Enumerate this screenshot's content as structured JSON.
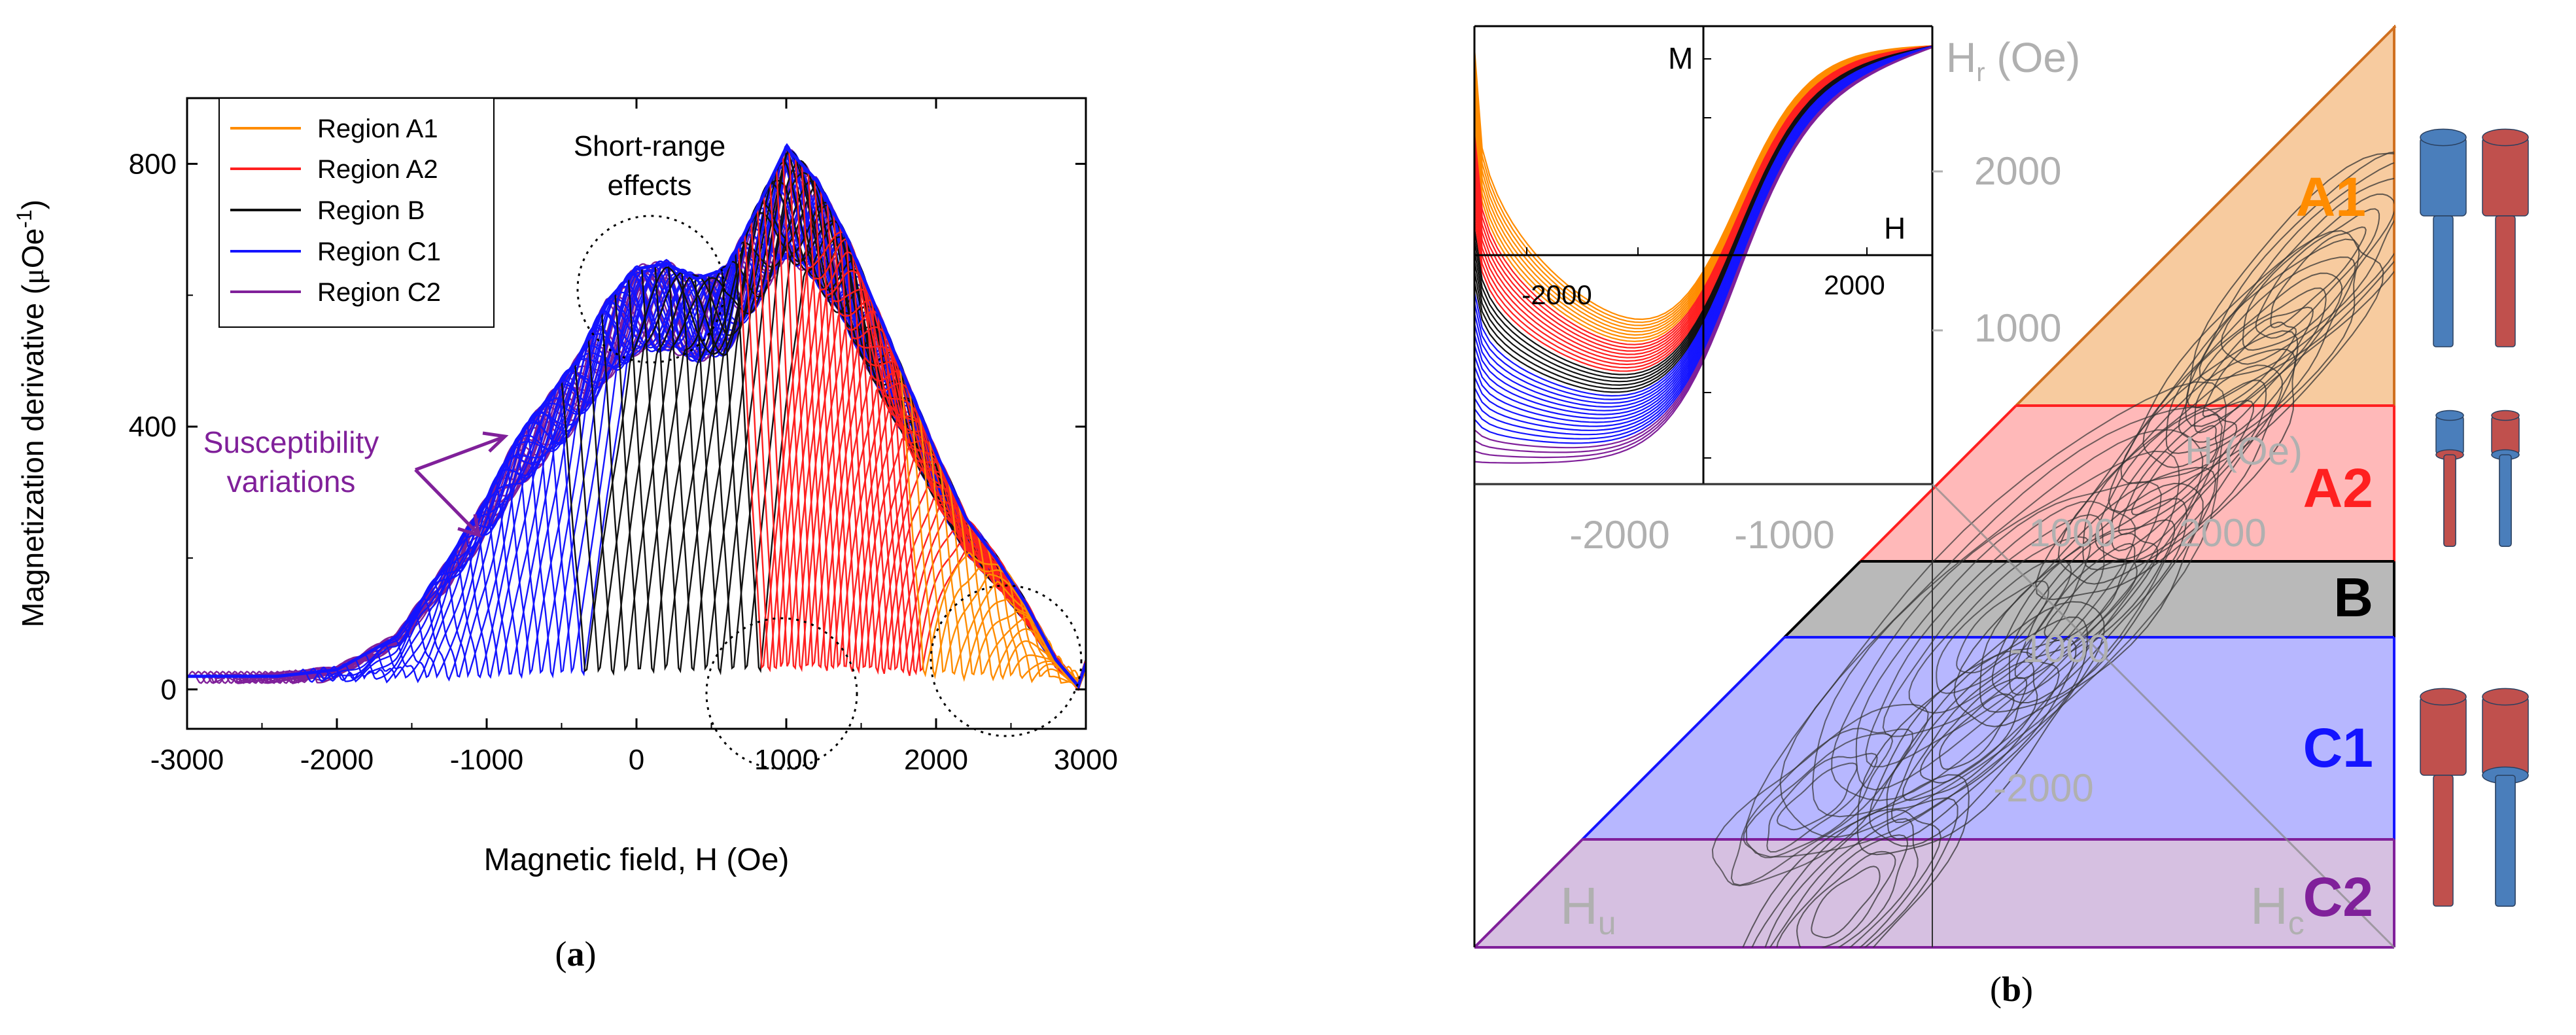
{
  "chart_data": [
    {
      "panel": "(a)",
      "type": "line",
      "xlabel": "Magnetic field, H (Oe)",
      "ylabel_parts": [
        "Magnetization derivative (",
        "μ",
        "Oe",
        "-1",
        ")"
      ],
      "xlim": [
        -3000,
        3000
      ],
      "ylim": [
        -60,
        900
      ],
      "xticks": [
        -3000,
        -2000,
        -1000,
        0,
        1000,
        2000,
        3000
      ],
      "yticks": [
        0,
        400,
        800
      ],
      "series": [
        {
          "name": "Region A1",
          "color": "#ff8c00",
          "count": 18,
          "x_start": [
            1760,
            2860
          ]
        },
        {
          "name": "Region A2",
          "color": "#ff2020",
          "count": 26,
          "x_start": [
            680,
            1740
          ]
        },
        {
          "name": "Region B",
          "color": "#111111",
          "count": 14,
          "x_start": [
            -500,
            660
          ]
        },
        {
          "name": "Region C1",
          "color": "#1414ff",
          "count": 26,
          "x_start": [
            -2250,
            -520
          ]
        },
        {
          "name": "Region C2",
          "color": "#80209a",
          "count": 18,
          "x_start": [
            -2990,
            -2300
          ]
        }
      ],
      "envelope": {
        "x": [
          -3000,
          -2400,
          -2000,
          -1600,
          -1300,
          -1000,
          -800,
          -600,
          -400,
          -200,
          0,
          200,
          400,
          600,
          800,
          1000,
          1200,
          1400,
          1600,
          1800,
          2000,
          2200,
          2400,
          2600,
          2800,
          2950,
          3000
        ],
        "y": [
          20,
          20,
          30,
          80,
          180,
          290,
          380,
          440,
          500,
          590,
          640,
          648,
          625,
          640,
          730,
          825,
          775,
          690,
          580,
          470,
          360,
          260,
          200,
          130,
          45,
          5,
          40
        ]
      },
      "annotations": {
        "short_range_1": "Short-range",
        "short_range_2": "effects",
        "susceptibility_1": "Susceptibility",
        "susceptibility_2": "variations"
      }
    },
    {
      "panel": "(b)",
      "type": "heatmap",
      "description": "FORC contour diagram with colored regions",
      "regions": [
        {
          "label": "A1",
          "color": "#f0a050",
          "text_color": "#ff8c00"
        },
        {
          "label": "A2",
          "color": "#ff8080",
          "text_color": "#ff2020"
        },
        {
          "label": "B",
          "color": "#808080",
          "text_color": "#000000"
        },
        {
          "label": "C1",
          "color": "#7b7bff",
          "text_color": "#1414ff"
        },
        {
          "label": "C2",
          "color": "#b48cc8",
          "text_color": "#80209a"
        }
      ],
      "axis_labels": {
        "Hr": "H",
        "Hr_sub": "r",
        "Hr_unit": " (Oe)",
        "Hu": "H",
        "Hu_sub": "u",
        "Hc": "H",
        "Hc_sub": "c",
        "H_ghost": "H",
        "H_ghost_unit": " (Oe)"
      },
      "hr_ticks": [
        "2000",
        "1000"
      ],
      "hu_ticks": [
        "-2000",
        "-1000"
      ],
      "hc_ticks": [
        "2000"
      ],
      "bottom_ghost_ticks": [
        "1000",
        "-1000",
        "-2000"
      ],
      "inset": {
        "type": "line",
        "xlabel": "H",
        "ylabel": "M",
        "xticks": [
          "-2000",
          "2000"
        ],
        "series_colors": [
          "#ff8c00",
          "#ff2020",
          "#111111",
          "#1414ff",
          "#80209a"
        ]
      }
    }
  ],
  "captions": {
    "a": "(a)",
    "b": "(b)"
  }
}
